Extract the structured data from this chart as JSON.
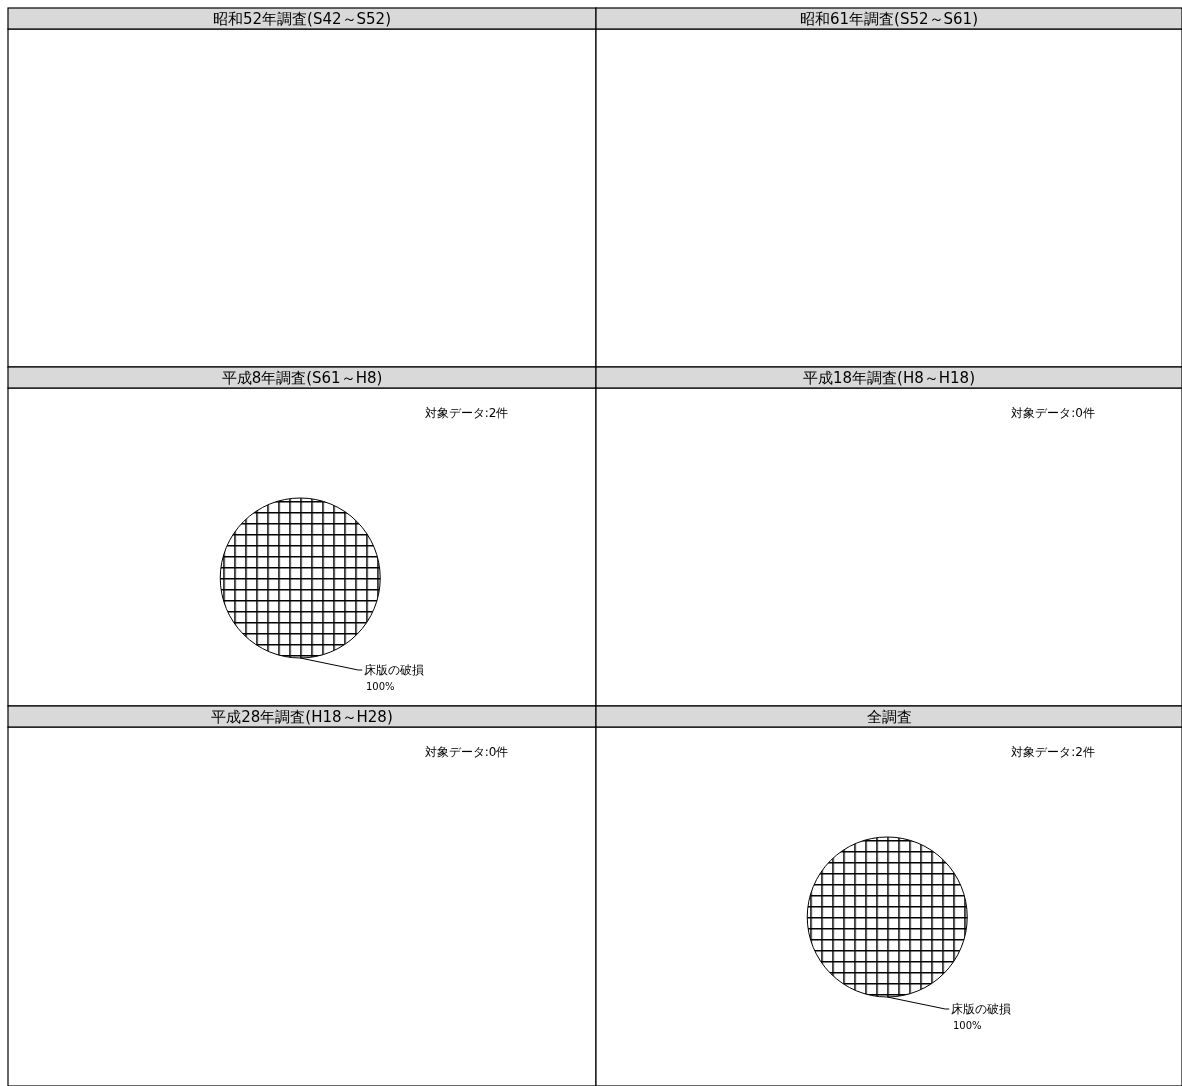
{
  "chart_data": [
    {
      "type": "other",
      "title": "昭和52年調査(S42～S52)"
    },
    {
      "type": "other",
      "title": "昭和61年調査(S52～S61)"
    },
    {
      "type": "pie",
      "title": "平成8年調査(S61～H8)",
      "annotations": [
        "対象データ:2件"
      ],
      "categories": [
        "床版の破損"
      ],
      "values": [
        100
      ],
      "colors": [
        "#000000"
      ],
      "value_labels": [
        "100%"
      ]
    },
    {
      "type": "other",
      "title": "平成18年調査(H8～H18)",
      "annotations": [
        "対象データ:0件"
      ]
    },
    {
      "type": "other",
      "title": "平成28年調査(H18～H28)",
      "annotations": [
        "対象データ:0件"
      ]
    },
    {
      "type": "pie",
      "title": "全調査",
      "annotations": [
        "対象データ:2件"
      ],
      "categories": [
        "床版の破損"
      ],
      "values": [
        100
      ],
      "colors": [
        "#000000"
      ],
      "value_labels": [
        "100%"
      ]
    }
  ]
}
